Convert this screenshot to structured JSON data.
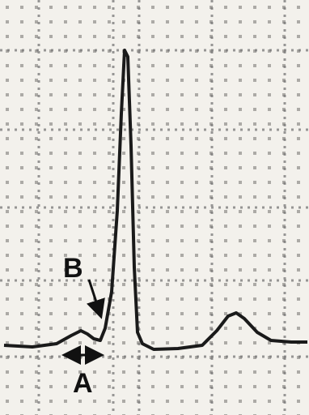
{
  "labels": {
    "a": "A",
    "b": "B"
  }
}
